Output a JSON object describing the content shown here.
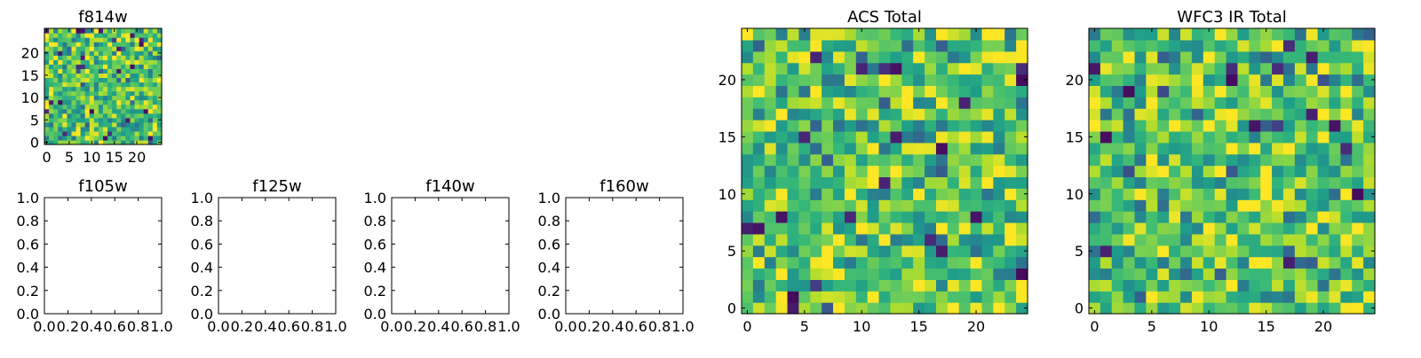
{
  "chart_data": [
    {
      "id": "f814w",
      "type": "heatmap",
      "title": "f814w",
      "colormap": "viridis",
      "grid": false,
      "nx": 26,
      "ny": 26,
      "xlim": [
        -0.5,
        25.5
      ],
      "ylim": [
        -0.5,
        25.5
      ],
      "xticks": [
        0,
        5,
        10,
        15,
        20
      ],
      "xtick_labels": [
        "0",
        "5",
        "10",
        "15",
        "20"
      ],
      "yticks": [
        0,
        5,
        10,
        15,
        20
      ],
      "ytick_labels": [
        "0",
        "5",
        "10",
        "15",
        "20"
      ],
      "seed": 814
    },
    {
      "id": "f105w",
      "type": "scatter",
      "title": "f105w",
      "grid": false,
      "xlim": [
        0,
        1
      ],
      "ylim": [
        0,
        1
      ],
      "xticks": [
        0,
        0.2,
        0.4,
        0.6,
        0.8,
        1.0
      ],
      "xtick_labels": [
        "0.0",
        "0.2",
        "0.4",
        "0.6",
        "0.8",
        "1.0"
      ],
      "yticks": [
        0,
        0.2,
        0.4,
        0.6,
        0.8,
        1.0
      ],
      "ytick_labels": [
        "0.0",
        "0.2",
        "0.4",
        "0.6",
        "0.8",
        "1.0"
      ]
    },
    {
      "id": "f125w",
      "type": "scatter",
      "title": "f125w",
      "grid": false,
      "xlim": [
        0,
        1
      ],
      "ylim": [
        0,
        1
      ],
      "xticks": [
        0,
        0.2,
        0.4,
        0.6,
        0.8,
        1.0
      ],
      "xtick_labels": [
        "0.0",
        "0.2",
        "0.4",
        "0.6",
        "0.8",
        "1.0"
      ],
      "yticks": [
        0,
        0.2,
        0.4,
        0.6,
        0.8,
        1.0
      ],
      "ytick_labels": [
        "0.0",
        "0.2",
        "0.4",
        "0.6",
        "0.8",
        "1.0"
      ]
    },
    {
      "id": "f140w",
      "type": "scatter",
      "title": "f140w",
      "grid": false,
      "xlim": [
        0,
        1
      ],
      "ylim": [
        0,
        1
      ],
      "xticks": [
        0,
        0.2,
        0.4,
        0.6,
        0.8,
        1.0
      ],
      "xtick_labels": [
        "0.0",
        "0.2",
        "0.4",
        "0.6",
        "0.8",
        "1.0"
      ],
      "yticks": [
        0,
        0.2,
        0.4,
        0.6,
        0.8,
        1.0
      ],
      "ytick_labels": [
        "0.0",
        "0.2",
        "0.4",
        "0.6",
        "0.8",
        "1.0"
      ]
    },
    {
      "id": "f160w",
      "type": "scatter",
      "title": "f160w",
      "grid": false,
      "xlim": [
        0,
        1
      ],
      "ylim": [
        0,
        1
      ],
      "xticks": [
        0,
        0.2,
        0.4,
        0.6,
        0.8,
        1.0
      ],
      "xtick_labels": [
        "0.0",
        "0.2",
        "0.4",
        "0.6",
        "0.8",
        "1.0"
      ],
      "yticks": [
        0,
        0.2,
        0.4,
        0.6,
        0.8,
        1.0
      ],
      "ytick_labels": [
        "0.0",
        "0.2",
        "0.4",
        "0.6",
        "0.8",
        "1.0"
      ]
    },
    {
      "id": "acs-total",
      "type": "heatmap",
      "title": "ACS Total",
      "colormap": "viridis",
      "grid": false,
      "nx": 25,
      "ny": 25,
      "xlim": [
        -0.5,
        24.5
      ],
      "ylim": [
        -0.5,
        24.5
      ],
      "xticks": [
        0,
        5,
        10,
        15,
        20
      ],
      "xtick_labels": [
        "0",
        "5",
        "10",
        "15",
        "20"
      ],
      "yticks": [
        0,
        5,
        10,
        15,
        20
      ],
      "ytick_labels": [
        "0",
        "5",
        "10",
        "15",
        "20"
      ],
      "seed": 4242
    },
    {
      "id": "wfc3-ir-total",
      "type": "heatmap",
      "title": "WFC3 IR Total",
      "colormap": "viridis",
      "grid": false,
      "nx": 25,
      "ny": 25,
      "xlim": [
        -0.5,
        24.5
      ],
      "ylim": [
        -0.5,
        24.5
      ],
      "xticks": [
        0,
        5,
        10,
        15,
        20
      ],
      "xtick_labels": [
        "0",
        "5",
        "10",
        "15",
        "20"
      ],
      "yticks": [
        0,
        5,
        10,
        15,
        20
      ],
      "ytick_labels": [
        "0",
        "5",
        "10",
        "15",
        "20"
      ],
      "seed": 3160
    }
  ]
}
